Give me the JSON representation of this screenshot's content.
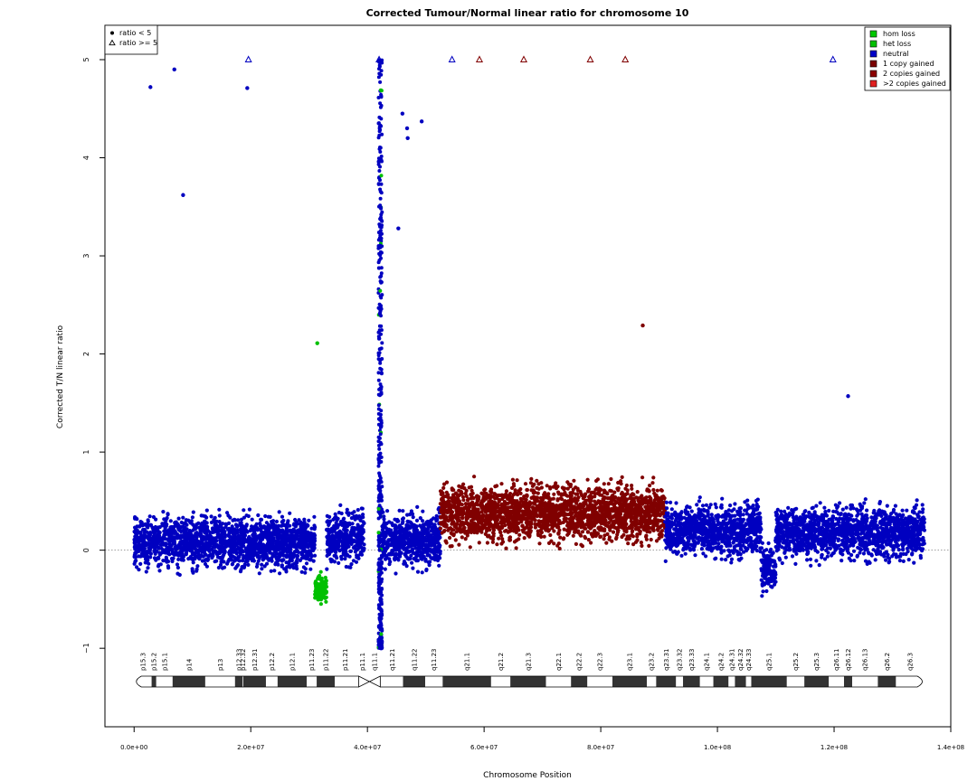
{
  "chart_data": {
    "type": "scatter",
    "title": "Corrected Tumour/Normal linear ratio for chromosome  10",
    "xlabel": "Chromosome Position",
    "ylabel": "Corrected T/N linear ratio",
    "xlim": [
      -5000000,
      140000000
    ],
    "ylim": [
      -1.8,
      5.35
    ],
    "x_ticks": [
      0,
      20000000,
      40000000,
      60000000,
      80000000,
      100000000,
      120000000,
      140000000
    ],
    "x_tick_labels": [
      "0.0e+00",
      "2.0e+07",
      "4.0e+07",
      "6.0e+07",
      "8.0e+07",
      "1.0e+08",
      "1.2e+08",
      "1.4e+08"
    ],
    "y_ticks": [
      -1,
      0,
      1,
      2,
      3,
      4,
      5
    ],
    "y_tick_labels": [
      "−1",
      "0",
      "1",
      "2",
      "3",
      "4",
      "5"
    ],
    "reference_line": 0,
    "grid": false,
    "legend_symbols": {
      "position": "top-left",
      "entries": [
        {
          "label": "ratio < 5",
          "marker": "dot"
        },
        {
          "label": "ratio >= 5",
          "marker": "triangle"
        }
      ]
    },
    "legend_states": {
      "position": "top-right",
      "entries": [
        {
          "label": "hom loss",
          "color": "#00C800"
        },
        {
          "label": "het loss",
          "color": "#00C000"
        },
        {
          "label": "neutral",
          "color": "#0000C8"
        },
        {
          "label": "1 copy gained",
          "color": "#7A0000"
        },
        {
          "label": "2 copies gained",
          "color": "#8B0000"
        },
        {
          "label": ">2 copies gained",
          "color": "#E02020"
        }
      ]
    },
    "colors": {
      "neutral": "#0000C0",
      "loss": "#00C000",
      "gain": "#800000",
      "frame": "#000000",
      "reference_line": "#808080"
    },
    "segments": [
      {
        "state": "neutral",
        "start": 0,
        "end": 31000000,
        "mean": 0.08,
        "spread": 0.22
      },
      {
        "state": "loss",
        "start": 31000000,
        "end": 33000000,
        "mean": -0.4,
        "spread": 0.13
      },
      {
        "state": "neutral",
        "start": 33000000,
        "end": 39500000,
        "mean": 0.12,
        "spread": 0.22
      },
      {
        "state": "neutral",
        "start": 42500000,
        "end": 52500000,
        "mean": 0.1,
        "spread": 0.22
      },
      {
        "state": "gain",
        "start": 52500000,
        "end": 91000000,
        "mean": 0.38,
        "spread": 0.24
      },
      {
        "state": "neutral",
        "start": 91000000,
        "end": 107500000,
        "mean": 0.2,
        "spread": 0.22
      },
      {
        "state": "neutral",
        "start": 107500000,
        "end": 110000000,
        "mean": -0.2,
        "spread": 0.2
      },
      {
        "state": "neutral",
        "start": 110000000,
        "end": 135500000,
        "mean": 0.18,
        "spread": 0.22
      }
    ],
    "outliers_dot": [
      {
        "x": 2800000,
        "y": 4.72,
        "state": "neutral"
      },
      {
        "x": 6900000,
        "y": 4.9,
        "state": "neutral"
      },
      {
        "x": 8400000,
        "y": 3.62,
        "state": "neutral"
      },
      {
        "x": 19400000,
        "y": 4.71,
        "state": "neutral"
      },
      {
        "x": 31400000,
        "y": 2.11,
        "state": "loss"
      },
      {
        "x": 46000000,
        "y": 4.45,
        "state": "neutral"
      },
      {
        "x": 46800000,
        "y": 4.3,
        "state": "neutral"
      },
      {
        "x": 46900000,
        "y": 4.2,
        "state": "neutral"
      },
      {
        "x": 49300000,
        "y": 4.37,
        "state": "neutral"
      },
      {
        "x": 45300000,
        "y": 3.28,
        "state": "neutral"
      },
      {
        "x": 87200000,
        "y": 2.29,
        "state": "gain"
      },
      {
        "x": 122400000,
        "y": 1.57,
        "state": "neutral"
      }
    ],
    "outliers_triangle": [
      {
        "x": 19600000,
        "y": 5,
        "state": "neutral"
      },
      {
        "x": 42000000,
        "y": 5,
        "state": "neutral"
      },
      {
        "x": 54500000,
        "y": 5,
        "state": "neutral"
      },
      {
        "x": 59200000,
        "y": 5,
        "state": "gain"
      },
      {
        "x": 66800000,
        "y": 5,
        "state": "gain"
      },
      {
        "x": 78200000,
        "y": 5,
        "state": "gain"
      },
      {
        "x": 84200000,
        "y": 5,
        "state": "gain"
      },
      {
        "x": 119800000,
        "y": 5,
        "state": "neutral"
      }
    ],
    "centromere_spike": {
      "x": 42200000,
      "ymin": -1.0,
      "ymax": 5.0
    },
    "ideogram": {
      "length": 135500000,
      "centromere": [
        38500000,
        42200000
      ],
      "bands": [
        {
          "name": "p15.3",
          "start": 0,
          "end": 3000000,
          "stain": "gneg"
        },
        {
          "name": "p15.2",
          "start": 3000000,
          "end": 3800000,
          "stain": "gpos"
        },
        {
          "name": "p15.1",
          "start": 3800000,
          "end": 6600000,
          "stain": "gneg"
        },
        {
          "name": "p14",
          "start": 6600000,
          "end": 12200000,
          "stain": "gpos"
        },
        {
          "name": "p13",
          "start": 12200000,
          "end": 17300000,
          "stain": "gneg"
        },
        {
          "name": "p12.33",
          "start": 17300000,
          "end": 18600000,
          "stain": "gpos"
        },
        {
          "name": "p12.32",
          "start": 18600000,
          "end": 18700000,
          "stain": "gneg"
        },
        {
          "name": "p12.31",
          "start": 18700000,
          "end": 22600000,
          "stain": "gpos"
        },
        {
          "name": "p12.2",
          "start": 22600000,
          "end": 24600000,
          "stain": "gneg"
        },
        {
          "name": "p12.1",
          "start": 24600000,
          "end": 29600000,
          "stain": "gpos"
        },
        {
          "name": "p11.23",
          "start": 29600000,
          "end": 31300000,
          "stain": "gneg"
        },
        {
          "name": "p11.22",
          "start": 31300000,
          "end": 34400000,
          "stain": "gpos"
        },
        {
          "name": "p11.21",
          "start": 34400000,
          "end": 38000000,
          "stain": "gneg"
        },
        {
          "name": "p11.1",
          "start": 38000000,
          "end": 40200000,
          "stain": "acen"
        },
        {
          "name": "q11.1",
          "start": 40200000,
          "end": 42300000,
          "stain": "acen"
        },
        {
          "name": "q11.21",
          "start": 42300000,
          "end": 46100000,
          "stain": "gneg"
        },
        {
          "name": "q11.22",
          "start": 46100000,
          "end": 49900000,
          "stain": "gpos"
        },
        {
          "name": "q11.23",
          "start": 49900000,
          "end": 52900000,
          "stain": "gneg"
        },
        {
          "name": "q21.1",
          "start": 52900000,
          "end": 61200000,
          "stain": "gpos"
        },
        {
          "name": "q21.2",
          "start": 61200000,
          "end": 64500000,
          "stain": "gneg"
        },
        {
          "name": "q21.3",
          "start": 64500000,
          "end": 70600000,
          "stain": "gpos"
        },
        {
          "name": "q22.1",
          "start": 70600000,
          "end": 74900000,
          "stain": "gneg"
        },
        {
          "name": "q22.2",
          "start": 74900000,
          "end": 77700000,
          "stain": "gpos"
        },
        {
          "name": "q22.3",
          "start": 77700000,
          "end": 82000000,
          "stain": "gneg"
        },
        {
          "name": "q23.1",
          "start": 82000000,
          "end": 87900000,
          "stain": "gpos"
        },
        {
          "name": "q23.2",
          "start": 87900000,
          "end": 89500000,
          "stain": "gneg"
        },
        {
          "name": "q23.31",
          "start": 89500000,
          "end": 92900000,
          "stain": "gpos"
        },
        {
          "name": "q23.32",
          "start": 92900000,
          "end": 94100000,
          "stain": "gneg"
        },
        {
          "name": "q23.33",
          "start": 94100000,
          "end": 97000000,
          "stain": "gpos"
        },
        {
          "name": "q24.1",
          "start": 97000000,
          "end": 99300000,
          "stain": "gneg"
        },
        {
          "name": "q24.2",
          "start": 99300000,
          "end": 101900000,
          "stain": "gpos"
        },
        {
          "name": "q24.31",
          "start": 101900000,
          "end": 103000000,
          "stain": "gneg"
        },
        {
          "name": "q24.32",
          "start": 103000000,
          "end": 104900000,
          "stain": "gpos"
        },
        {
          "name": "q24.33",
          "start": 104900000,
          "end": 105800000,
          "stain": "gneg"
        },
        {
          "name": "q25.1",
          "start": 105800000,
          "end": 111900000,
          "stain": "gpos"
        },
        {
          "name": "q25.2",
          "start": 111900000,
          "end": 114900000,
          "stain": "gneg"
        },
        {
          "name": "q25.3",
          "start": 114900000,
          "end": 119100000,
          "stain": "gpos"
        },
        {
          "name": "q26.11",
          "start": 119100000,
          "end": 121700000,
          "stain": "gneg"
        },
        {
          "name": "q26.12",
          "start": 121700000,
          "end": 123100000,
          "stain": "gpos"
        },
        {
          "name": "q26.13",
          "start": 123100000,
          "end": 127500000,
          "stain": "gneg"
        },
        {
          "name": "q26.2",
          "start": 127500000,
          "end": 130600000,
          "stain": "gpos"
        },
        {
          "name": "q26.3",
          "start": 130600000,
          "end": 135500000,
          "stain": "gneg"
        }
      ]
    }
  }
}
